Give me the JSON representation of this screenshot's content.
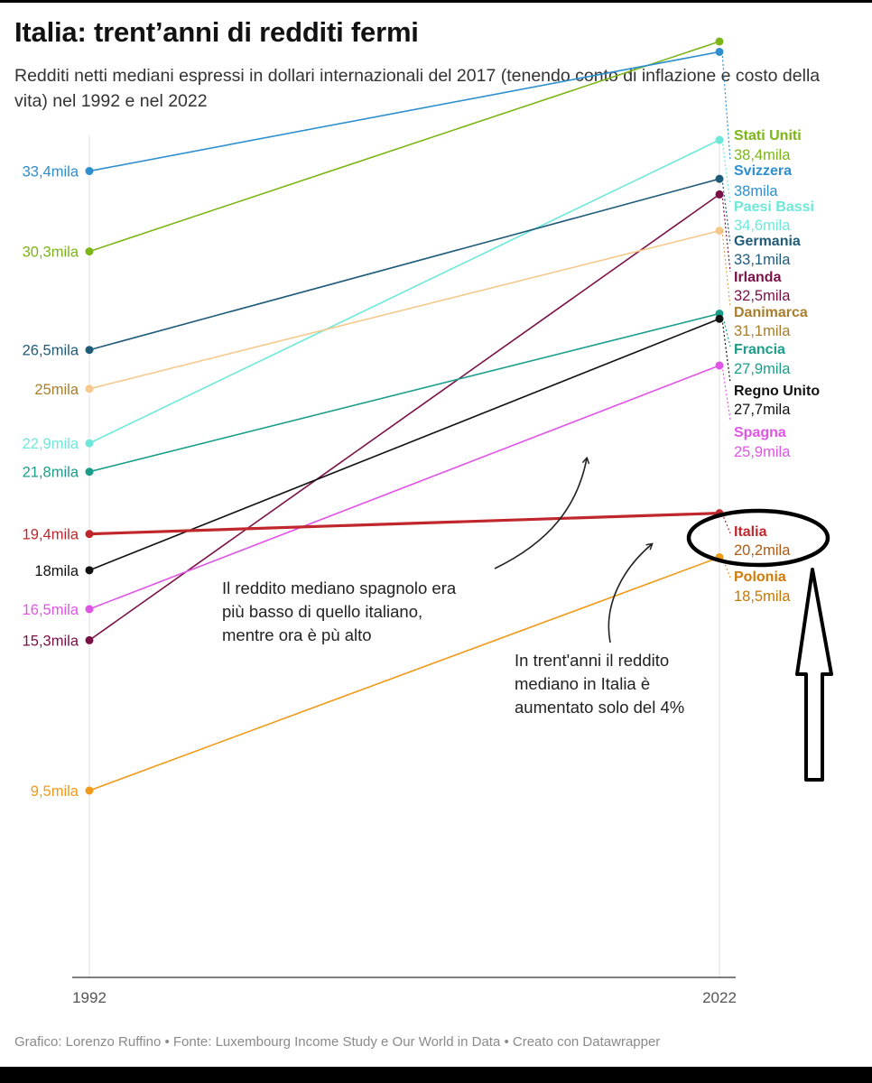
{
  "title": "Italia: trent’anni di redditi fermi",
  "subtitle": "Redditi netti mediani espressi in dollari internazionali del 2017 (tenendo conto di inflazione e costo della vita) nel 1992 e nel 2022",
  "footer": "Grafico: Lorenzo Ruffino • Fonte: Luxembourg Income Study e Our World in Data • Creato con Datawrapper",
  "chart_data": {
    "type": "line",
    "x": [
      "1992",
      "2022"
    ],
    "xlabel": "",
    "ylabel": "",
    "unit": "mila",
    "grid": false,
    "series": [
      {
        "name": "Stati Uniti",
        "color": "#7cb518",
        "values": [
          30.3,
          38.4
        ],
        "start_label": "30,3mila",
        "end_label": "38,4mila"
      },
      {
        "name": "Svizzera",
        "color": "#2e8fcf",
        "values": [
          33.4,
          38.0
        ],
        "start_label": "33,4mila",
        "end_label": "38mila"
      },
      {
        "name": "Paesi Bassi",
        "color": "#6de8d8",
        "values": [
          22.9,
          34.6
        ],
        "start_label": "22,9mila",
        "end_label": "34,6mila"
      },
      {
        "name": "Germania",
        "color": "#1f5c7a",
        "values": [
          26.5,
          33.1
        ],
        "start_label": "26,5mila",
        "end_label": "33,1mila"
      },
      {
        "name": "Irlanda",
        "color": "#7a1046",
        "values": [
          15.3,
          32.5
        ],
        "start_label": "15,3mila",
        "end_label": "32,5mila"
      },
      {
        "name": "Danimarca",
        "color": "#f5c98c",
        "values": [
          25.0,
          31.1
        ],
        "start_label": "25mila",
        "end_label": "31,1mila"
      },
      {
        "name": "Francia",
        "color": "#1a9e8a",
        "values": [
          21.8,
          27.9
        ],
        "start_label": "21,8mila",
        "end_label": "27,9mila"
      },
      {
        "name": "Regno Unito",
        "color": "#111111",
        "values": [
          18.0,
          27.7
        ],
        "start_label": "18mila",
        "end_label": "27,7mila"
      },
      {
        "name": "Spagna",
        "color": "#e055e6",
        "values": [
          16.5,
          25.9
        ],
        "start_label": "16,5mila",
        "end_label": "25,9mila"
      },
      {
        "name": "Italia",
        "color": "#c0272d",
        "values": [
          19.4,
          20.2
        ],
        "start_label": "19,4mila",
        "end_label": "20,2mila"
      },
      {
        "name": "Polonia",
        "color": "#f09a1a",
        "values": [
          9.5,
          18.5
        ],
        "start_label": "9,5mila",
        "end_label": "18,5mila"
      }
    ],
    "annotations": [
      {
        "text": [
          "Il reddito mediano spagnolo era",
          "più basso di quello italiano,",
          "mentre ora è pù alto"
        ]
      },
      {
        "text": [
          "In trent'anni il reddito",
          "mediano in Italia è",
          "aumentato solo del 4%"
        ]
      }
    ]
  }
}
